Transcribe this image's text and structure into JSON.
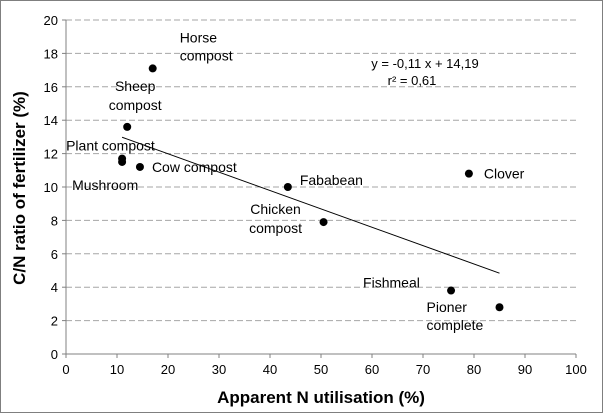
{
  "chart_data": {
    "type": "scatter",
    "xlabel": "Apparent N utilisation (%)",
    "ylabel": "C/N ratio of fertilizer (%)",
    "xlim": [
      0,
      100
    ],
    "ylim": [
      0,
      20
    ],
    "x_ticks": [
      "0",
      "10",
      "20",
      "30",
      "40",
      "50",
      "60",
      "70",
      "80",
      "90",
      "100"
    ],
    "y_ticks": [
      "0",
      "2",
      "4",
      "6",
      "8",
      "10",
      "12",
      "14",
      "16",
      "18",
      "20"
    ],
    "grid": "horizontal dashed",
    "marker_color": "#000000",
    "points": [
      {
        "label": [
          "Horse",
          "compost"
        ],
        "x": 17.0,
        "y": 17.1
      },
      {
        "label": [
          "Sheep",
          "compost"
        ],
        "x": 12.0,
        "y": 13.6
      },
      {
        "label": [
          "Plant compost"
        ],
        "x": 11.0,
        "y": 11.7
      },
      {
        "label": [
          "Mushroom"
        ],
        "x": 11.0,
        "y": 11.5
      },
      {
        "label": [
          "Cow compost"
        ],
        "x": 14.5,
        "y": 11.2
      },
      {
        "label": [
          "Fababean"
        ],
        "x": 43.5,
        "y": 10.0
      },
      {
        "label": [
          "Chicken",
          "compost"
        ],
        "x": 50.5,
        "y": 7.9
      },
      {
        "label": [
          "Clover"
        ],
        "x": 79.0,
        "y": 10.8
      },
      {
        "label": [
          "Fishmeal"
        ],
        "x": 75.5,
        "y": 3.8
      },
      {
        "label": [
          "Pioner",
          "complete"
        ],
        "x": 85.0,
        "y": 2.8
      }
    ],
    "trendline": {
      "slope": -0.11,
      "intercept": 14.19,
      "x_range": [
        11,
        85
      ]
    },
    "annotations": [
      "y = -0,11 x + 14,19",
      "r² = 0,61"
    ]
  }
}
